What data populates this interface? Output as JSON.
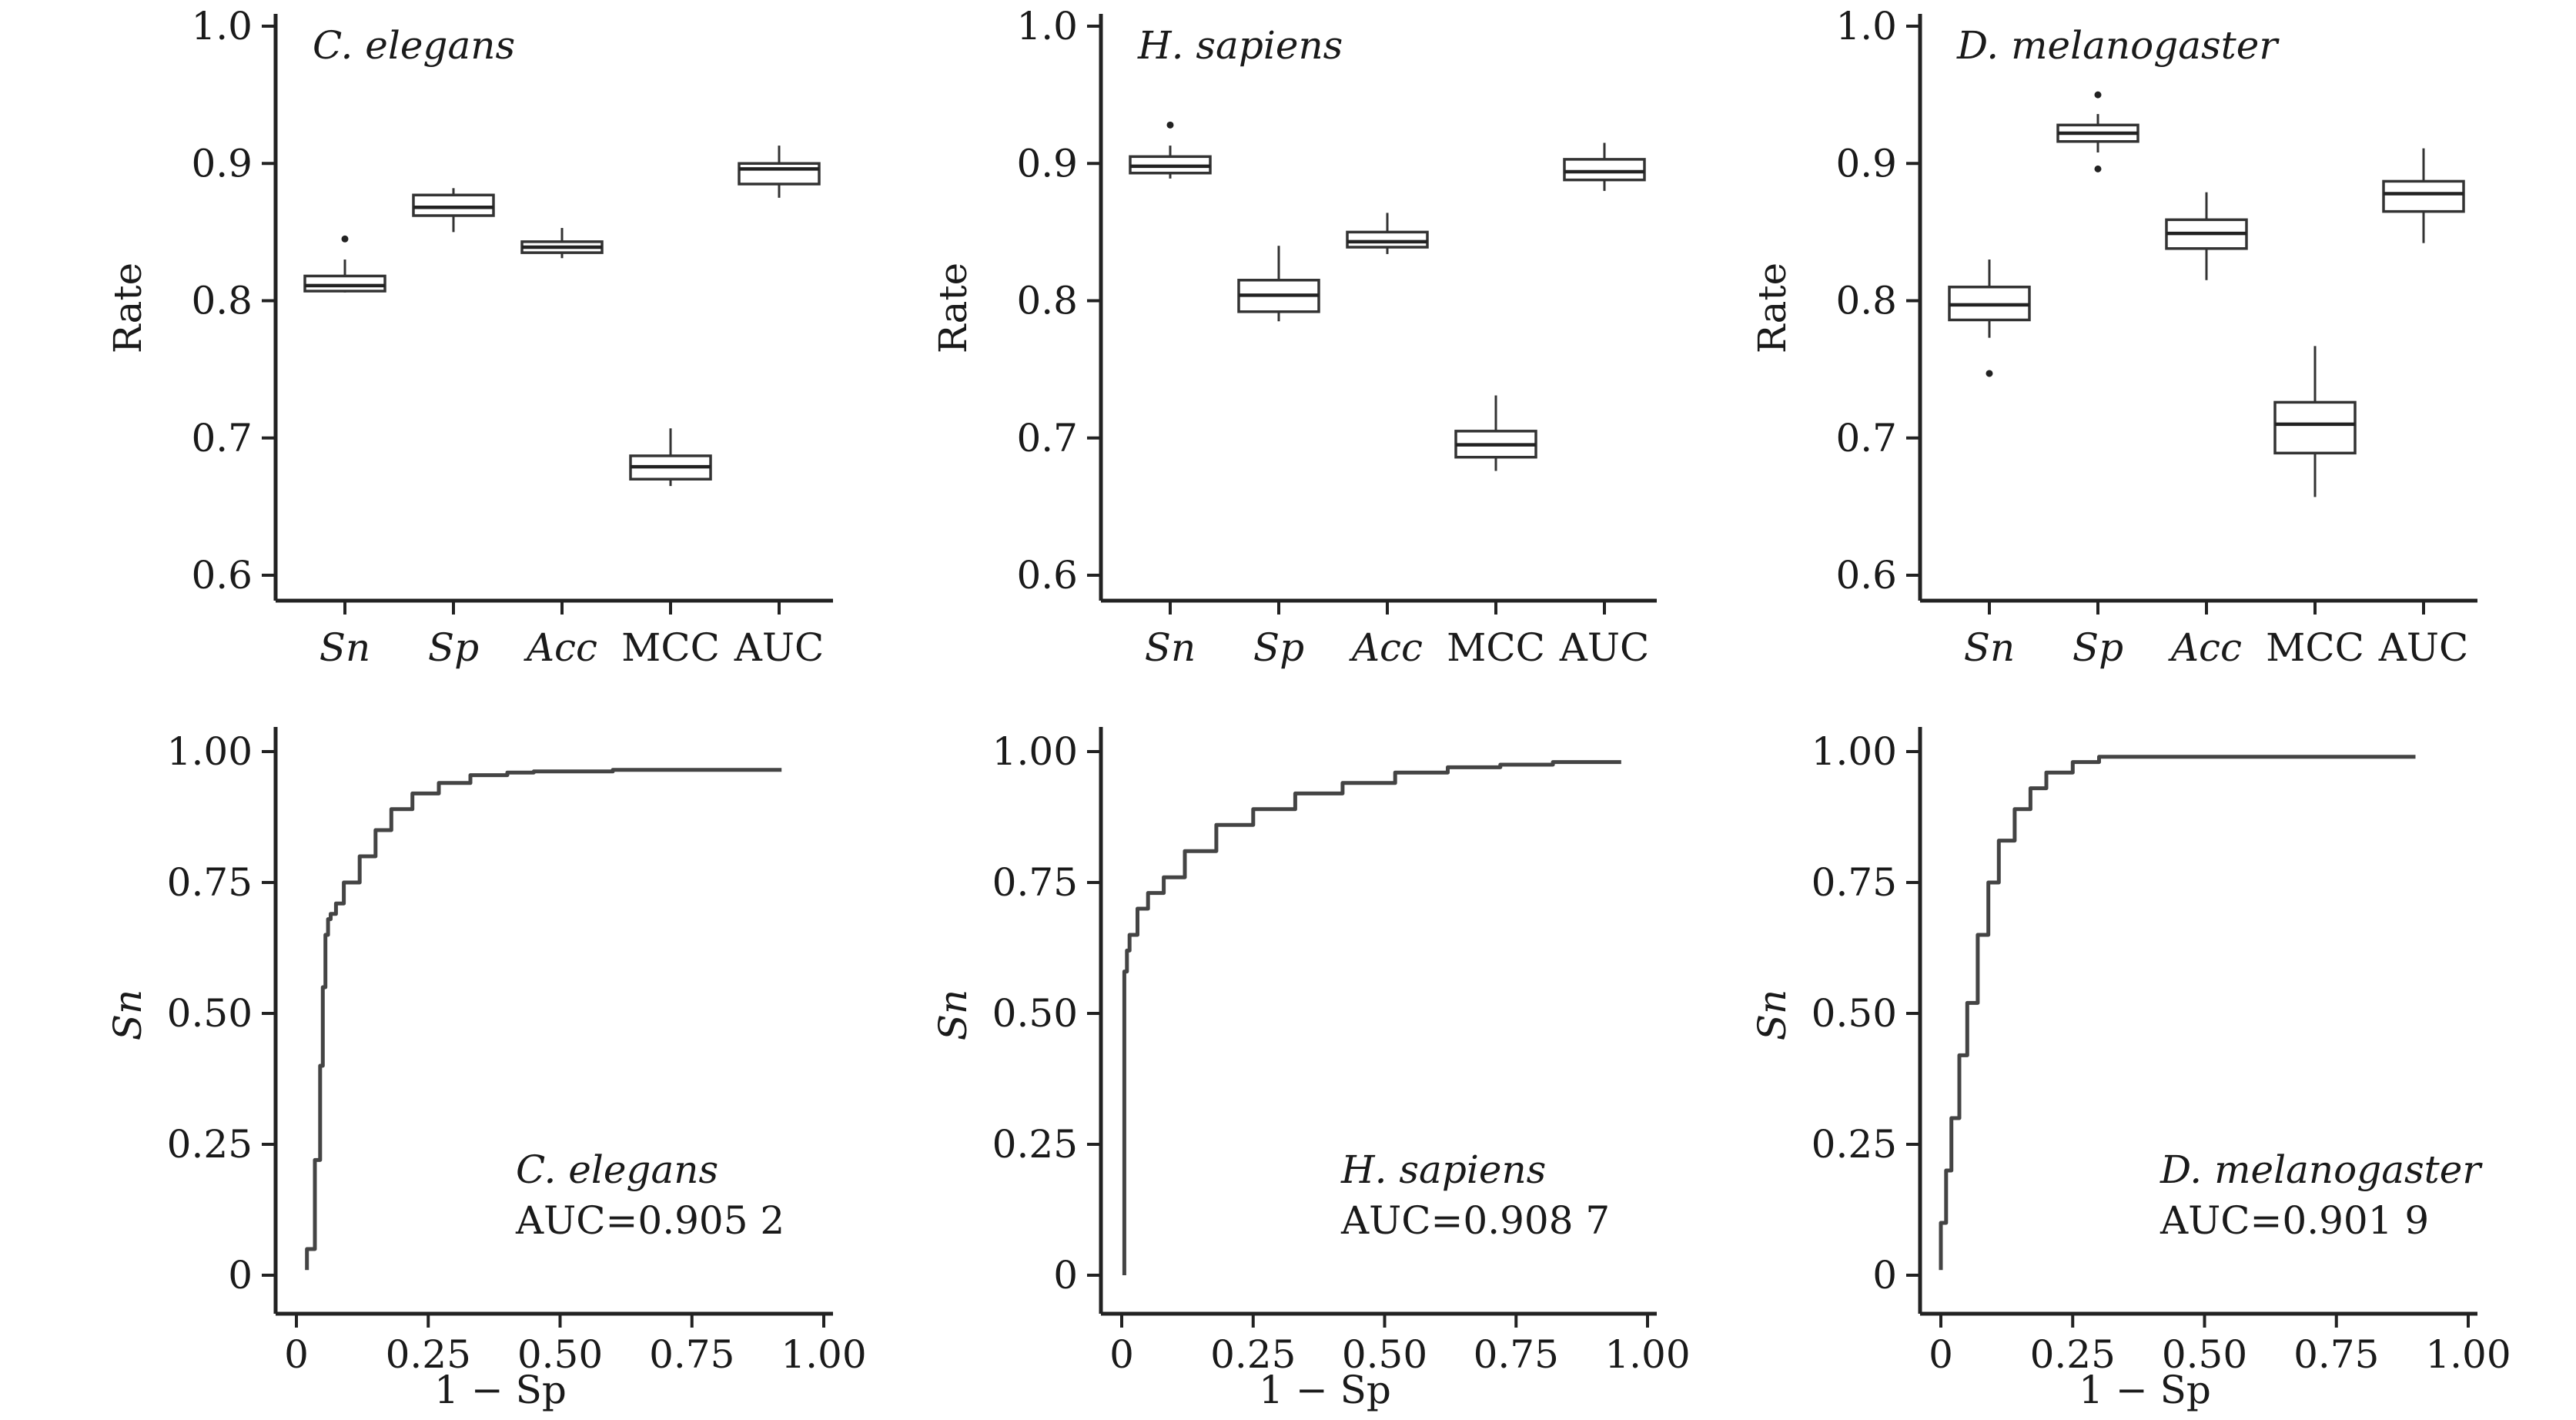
{
  "chart_data": [
    {
      "type": "box",
      "panel_label": "C. elegans",
      "ylabel": "Rate",
      "ylim": [
        0.6,
        1.0
      ],
      "yticks": [
        "0.6",
        "0.7",
        "0.8",
        "0.9",
        "1.0"
      ],
      "categories": [
        "Sn",
        "Sp",
        "Acc",
        "MCC",
        "AUC"
      ],
      "boxes": [
        {
          "min": 0.806,
          "q1": 0.807,
          "median": 0.811,
          "q3": 0.818,
          "max": 0.83,
          "outliers": [
            0.845
          ]
        },
        {
          "min": 0.85,
          "q1": 0.862,
          "median": 0.868,
          "q3": 0.877,
          "max": 0.882,
          "outliers": []
        },
        {
          "min": 0.831,
          "q1": 0.835,
          "median": 0.839,
          "q3": 0.843,
          "max": 0.853,
          "outliers": []
        },
        {
          "min": 0.665,
          "q1": 0.67,
          "median": 0.679,
          "q3": 0.687,
          "max": 0.707,
          "outliers": []
        },
        {
          "min": 0.875,
          "q1": 0.885,
          "median": 0.896,
          "q3": 0.9,
          "max": 0.913,
          "outliers": []
        }
      ]
    },
    {
      "type": "box",
      "panel_label": "H. sapiens",
      "ylabel": "Rate",
      "ylim": [
        0.6,
        1.0
      ],
      "yticks": [
        "0.6",
        "0.7",
        "0.8",
        "0.9",
        "1.0"
      ],
      "categories": [
        "Sn",
        "Sp",
        "Acc",
        "MCC",
        "AUC"
      ],
      "boxes": [
        {
          "min": 0.889,
          "q1": 0.893,
          "median": 0.898,
          "q3": 0.905,
          "max": 0.913,
          "outliers": [
            0.928
          ]
        },
        {
          "min": 0.785,
          "q1": 0.792,
          "median": 0.804,
          "q3": 0.815,
          "max": 0.84,
          "outliers": []
        },
        {
          "min": 0.834,
          "q1": 0.839,
          "median": 0.843,
          "q3": 0.85,
          "max": 0.864,
          "outliers": []
        },
        {
          "min": 0.676,
          "q1": 0.686,
          "median": 0.695,
          "q3": 0.705,
          "max": 0.731,
          "outliers": []
        },
        {
          "min": 0.88,
          "q1": 0.888,
          "median": 0.894,
          "q3": 0.903,
          "max": 0.915,
          "outliers": []
        }
      ]
    },
    {
      "type": "box",
      "panel_label": "D. melanogaster",
      "ylabel": "Rate",
      "ylim": [
        0.6,
        1.0
      ],
      "yticks": [
        "0.6",
        "0.7",
        "0.8",
        "0.9",
        "1.0"
      ],
      "categories": [
        "Sn",
        "Sp",
        "Acc",
        "MCC",
        "AUC"
      ],
      "boxes": [
        {
          "min": 0.773,
          "q1": 0.786,
          "median": 0.797,
          "q3": 0.81,
          "max": 0.83,
          "outliers": [
            0.747
          ]
        },
        {
          "min": 0.908,
          "q1": 0.916,
          "median": 0.922,
          "q3": 0.928,
          "max": 0.936,
          "outliers": [
            0.95,
            0.896
          ]
        },
        {
          "min": 0.815,
          "q1": 0.838,
          "median": 0.849,
          "q3": 0.859,
          "max": 0.879,
          "outliers": []
        },
        {
          "min": 0.657,
          "q1": 0.689,
          "median": 0.71,
          "q3": 0.726,
          "max": 0.767,
          "outliers": []
        },
        {
          "min": 0.842,
          "q1": 0.865,
          "median": 0.878,
          "q3": 0.887,
          "max": 0.911,
          "outliers": []
        }
      ]
    },
    {
      "type": "line",
      "xlabel": "1 − Sp",
      "ylabel": "Sn",
      "xlim": [
        0,
        1.0
      ],
      "ylim": [
        0,
        1.0
      ],
      "xticks": [
        "0",
        "0.25",
        "0.50",
        "0.75",
        "1.00"
      ],
      "yticks": [
        "0",
        "0.25",
        "0.50",
        "0.75",
        "1.00"
      ],
      "annotation": {
        "species": "C. elegans",
        "auc": "AUC=0.905 2"
      },
      "x": [
        0.02,
        0.035,
        0.045,
        0.05,
        0.055,
        0.06,
        0.065,
        0.075,
        0.09,
        0.12,
        0.15,
        0.18,
        0.22,
        0.27,
        0.33,
        0.4,
        0.45,
        0.6,
        0.92
      ],
      "y": [
        0.01,
        0.05,
        0.22,
        0.4,
        0.55,
        0.65,
        0.68,
        0.69,
        0.71,
        0.75,
        0.8,
        0.85,
        0.89,
        0.92,
        0.94,
        0.955,
        0.96,
        0.962,
        0.965
      ]
    },
    {
      "type": "line",
      "xlabel": "1 − Sp",
      "ylabel": "Sn",
      "xlim": [
        0,
        1.0
      ],
      "ylim": [
        0,
        1.0
      ],
      "xticks": [
        "0",
        "0.25",
        "0.50",
        "0.75",
        "1.00"
      ],
      "yticks": [
        "0",
        "0.25",
        "0.50",
        "0.75",
        "1.00"
      ],
      "annotation": {
        "species": "H. sapiens",
        "auc": "AUC=0.908 7"
      },
      "x": [
        0.005,
        0.005,
        0.01,
        0.015,
        0.03,
        0.05,
        0.08,
        0.12,
        0.18,
        0.25,
        0.33,
        0.42,
        0.52,
        0.62,
        0.72,
        0.82,
        0.9,
        0.95
      ],
      "y": [
        0.0,
        0.43,
        0.58,
        0.62,
        0.65,
        0.7,
        0.73,
        0.76,
        0.81,
        0.86,
        0.89,
        0.92,
        0.94,
        0.96,
        0.97,
        0.975,
        0.98,
        0.98
      ]
    },
    {
      "type": "line",
      "xlabel": "1 − Sp",
      "ylabel": "Sn",
      "xlim": [
        0,
        1.0
      ],
      "ylim": [
        0,
        1.0
      ],
      "xticks": [
        "0",
        "0.25",
        "0.50",
        "0.75",
        "1.00"
      ],
      "yticks": [
        "0",
        "0.25",
        "0.50",
        "0.75",
        "1.00"
      ],
      "annotation": {
        "species": "D. melanogaster",
        "auc": "AUC=0.901 9"
      },
      "x": [
        0.0,
        0.01,
        0.02,
        0.035,
        0.05,
        0.07,
        0.09,
        0.11,
        0.14,
        0.17,
        0.2,
        0.25,
        0.3,
        0.36,
        0.5,
        0.7,
        0.9
      ],
      "y": [
        0.01,
        0.1,
        0.2,
        0.3,
        0.42,
        0.52,
        0.65,
        0.75,
        0.83,
        0.89,
        0.93,
        0.96,
        0.98,
        0.99,
        0.99,
        0.99,
        0.99
      ]
    }
  ]
}
